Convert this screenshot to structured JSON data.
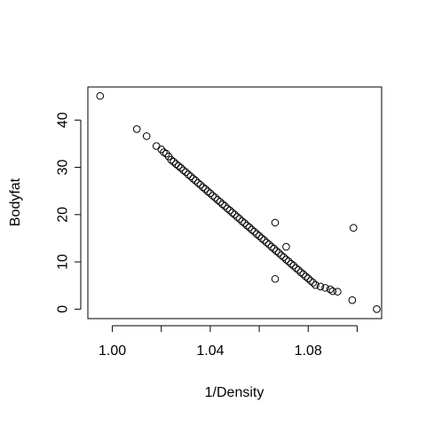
{
  "chart_data": {
    "type": "scatter",
    "title": "",
    "xlabel": "1/Density",
    "ylabel": "Bodyfat",
    "xlim": [
      0.99,
      1.11
    ],
    "ylim": [
      -2,
      47
    ],
    "xticks": [
      1.0,
      1.02,
      1.04,
      1.06,
      1.08,
      1.1
    ],
    "xtick_labels": [
      "1.00",
      "",
      "1.04",
      "",
      "1.08",
      ""
    ],
    "yticks": [
      0,
      10,
      20,
      30,
      40
    ],
    "ytick_labels": [
      "0",
      "10",
      "20",
      "30",
      "40"
    ],
    "grid": false,
    "legend": "none",
    "marker": "open-circle",
    "color": "#000000",
    "points": [
      [
        0.995,
        45.1
      ],
      [
        1.01,
        38.1
      ],
      [
        1.014,
        36.6
      ],
      [
        1.018,
        34.5
      ],
      [
        1.02,
        33.8
      ],
      [
        1.021,
        33.2
      ],
      [
        1.022,
        32.9
      ],
      [
        1.023,
        32.3
      ],
      [
        1.024,
        31.6
      ],
      [
        1.025,
        31.2
      ],
      [
        1.026,
        30.7
      ],
      [
        1.027,
        30.3
      ],
      [
        1.028,
        29.9
      ],
      [
        1.029,
        29.4
      ],
      [
        1.03,
        29.0
      ],
      [
        1.031,
        28.5
      ],
      [
        1.032,
        28.1
      ],
      [
        1.033,
        27.6
      ],
      [
        1.034,
        27.2
      ],
      [
        1.035,
        26.7
      ],
      [
        1.036,
        26.3
      ],
      [
        1.037,
        25.8
      ],
      [
        1.038,
        25.4
      ],
      [
        1.039,
        24.9
      ],
      [
        1.04,
        24.5
      ],
      [
        1.041,
        24.0
      ],
      [
        1.042,
        23.6
      ],
      [
        1.043,
        23.1
      ],
      [
        1.044,
        22.7
      ],
      [
        1.045,
        22.2
      ],
      [
        1.046,
        21.8
      ],
      [
        1.047,
        21.3
      ],
      [
        1.048,
        20.9
      ],
      [
        1.049,
        20.4
      ],
      [
        1.05,
        20.0
      ],
      [
        1.051,
        19.5
      ],
      [
        1.052,
        19.1
      ],
      [
        1.053,
        18.6
      ],
      [
        1.054,
        18.2
      ],
      [
        1.055,
        17.7
      ],
      [
        1.056,
        17.3
      ],
      [
        1.057,
        16.8
      ],
      [
        1.058,
        16.4
      ],
      [
        1.059,
        15.9
      ],
      [
        1.06,
        15.5
      ],
      [
        1.061,
        15.0
      ],
      [
        1.062,
        14.6
      ],
      [
        1.063,
        14.1
      ],
      [
        1.064,
        13.7
      ],
      [
        1.065,
        13.2
      ],
      [
        1.066,
        12.8
      ],
      [
        1.067,
        12.3
      ],
      [
        1.068,
        11.9
      ],
      [
        1.069,
        11.4
      ],
      [
        1.07,
        11.0
      ],
      [
        1.071,
        10.5
      ],
      [
        1.072,
        10.1
      ],
      [
        1.073,
        9.6
      ],
      [
        1.074,
        9.2
      ],
      [
        1.075,
        8.7
      ],
      [
        1.076,
        8.3
      ],
      [
        1.077,
        7.8
      ],
      [
        1.078,
        7.4
      ],
      [
        1.079,
        6.9
      ],
      [
        1.08,
        6.5
      ],
      [
        1.081,
        6.0
      ],
      [
        1.082,
        5.6
      ],
      [
        1.083,
        5.1
      ],
      [
        1.085,
        4.8
      ],
      [
        1.087,
        4.5
      ],
      [
        1.089,
        4.2
      ],
      [
        1.09,
        3.8
      ],
      [
        1.092,
        3.7
      ],
      [
        1.0665,
        18.3
      ],
      [
        1.0665,
        6.4
      ],
      [
        1.071,
        13.2
      ],
      [
        1.0985,
        17.2
      ],
      [
        1.098,
        1.9
      ],
      [
        1.108,
        0.0
      ]
    ]
  }
}
